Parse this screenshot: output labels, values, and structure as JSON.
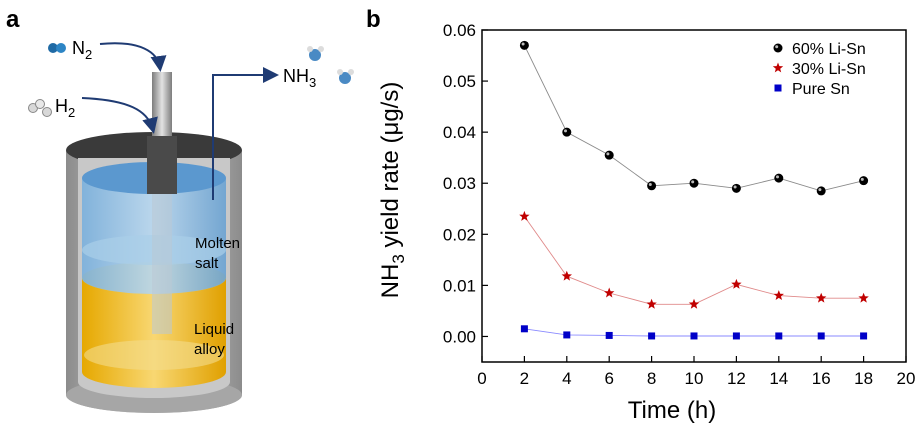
{
  "panel_a": {
    "letter": "a",
    "gas_n2": "N",
    "gas_n2_sub": "2",
    "gas_h2": "H",
    "gas_h2_sub": "2",
    "product_nh3": "NH",
    "product_nh3_sub": "3",
    "molten_salt_line1": "Molten",
    "molten_salt_line2": "salt",
    "liquid_alloy_line1": "Liquid",
    "liquid_alloy_line2": "alloy",
    "colors": {
      "salt": "#6fa8d8",
      "alloy": "#f2b500",
      "vessel": "#9a9a9a"
    }
  },
  "panel_b": {
    "letter": "b"
  },
  "chart_data": {
    "type": "scatter",
    "x": [
      2,
      4,
      6,
      8,
      10,
      12,
      14,
      16,
      18
    ],
    "series": [
      {
        "name": "60% Li-Sn",
        "marker": "circle",
        "color": "#000000",
        "values": [
          0.057,
          0.04,
          0.0355,
          0.0295,
          0.03,
          0.029,
          0.031,
          0.0285,
          0.0305
        ]
      },
      {
        "name": "30% Li-Sn",
        "marker": "star",
        "color": "#c00000",
        "values": [
          0.0235,
          0.0118,
          0.0085,
          0.0063,
          0.0063,
          0.0102,
          0.008,
          0.0075,
          0.0075
        ]
      },
      {
        "name": "Pure Sn",
        "marker": "square",
        "color": "#0000c8",
        "values": [
          0.0015,
          0.0003,
          0.0002,
          0.0001,
          0.0001,
          0.0001,
          0.0001,
          0.0001,
          0.0001
        ]
      }
    ],
    "xlabel": "Time (h)",
    "ylabel_prefix": "NH",
    "ylabel_sub": "3",
    "ylabel_suffix": " yield rate (μg/s)",
    "xlim": [
      0,
      20
    ],
    "ylim": [
      -0.005,
      0.06
    ],
    "xticks": [
      "0",
      "2",
      "4",
      "6",
      "8",
      "10",
      "12",
      "14",
      "16",
      "18",
      "20"
    ],
    "yticks": [
      "0.00",
      "0.01",
      "0.02",
      "0.03",
      "0.04",
      "0.05",
      "0.06"
    ],
    "legend_position": "top-right",
    "grid": false
  }
}
